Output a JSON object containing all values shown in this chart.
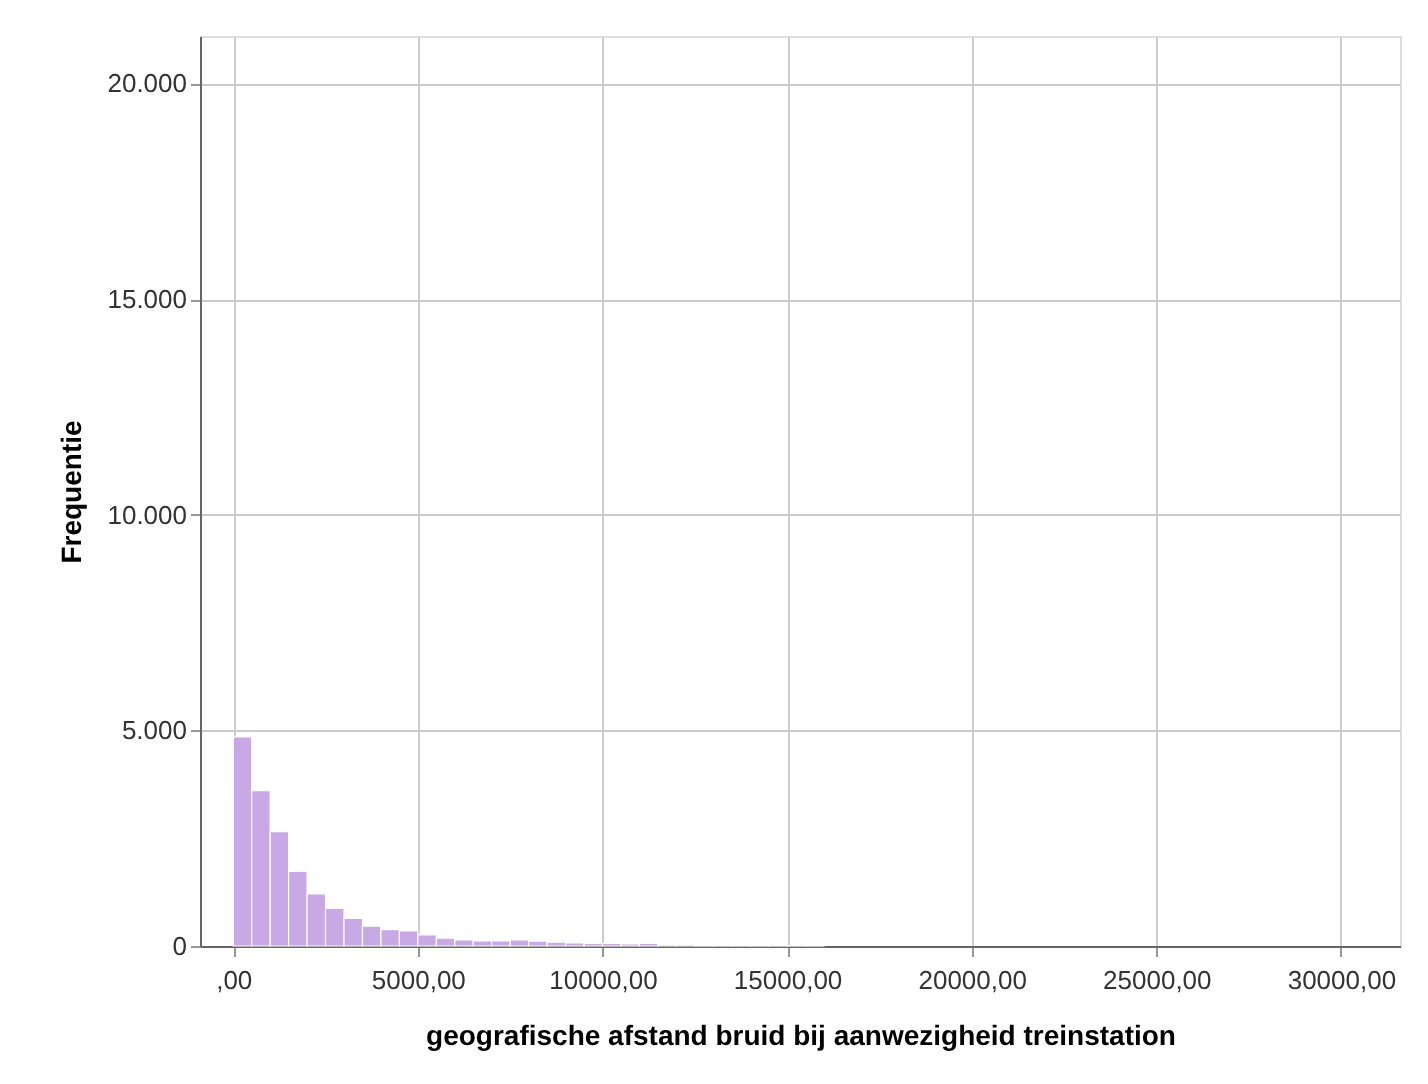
{
  "chart_data": {
    "type": "histogram",
    "xlabel": "geografische afstand bruid bij aanwezigheid treinstation",
    "ylabel": "Frequentie",
    "bins": [
      0,
      500,
      1000,
      1500,
      2000,
      2500,
      3000,
      3500,
      4000,
      4500,
      5000,
      5500,
      6000,
      6500,
      7000,
      7500,
      8000,
      8500,
      9000,
      9500,
      10000,
      10500,
      11000,
      11500,
      12000,
      12500,
      13000,
      13500,
      14000,
      14500,
      15000,
      15500,
      16000
    ],
    "values": [
      4850,
      3600,
      2650,
      1730,
      1210,
      870,
      640,
      460,
      380,
      350,
      260,
      180,
      140,
      120,
      120,
      140,
      110,
      90,
      70,
      60,
      60,
      50,
      60,
      30,
      30,
      20,
      20,
      20,
      20,
      10,
      10,
      10
    ],
    "color": "#c9a8e6",
    "xlim": [
      -900,
      31600
    ],
    "ylim": [
      0,
      21100
    ],
    "xticks": [
      {
        "value": 0,
        "label": ",00"
      },
      {
        "value": 5000,
        "label": "5000,00"
      },
      {
        "value": 10000,
        "label": "10000,00"
      },
      {
        "value": 15000,
        "label": "15000,00"
      },
      {
        "value": 20000,
        "label": "20000,00"
      },
      {
        "value": 25000,
        "label": "25000,00"
      },
      {
        "value": 30000,
        "label": "30000,00"
      }
    ],
    "yticks": [
      0,
      {
        "value": 5000,
        "label": "5.000"
      },
      {
        "value": 10000,
        "label": "10.000"
      },
      {
        "value": 15000,
        "label": "15.000"
      },
      {
        "value": 20000,
        "label": "20.000"
      }
    ],
    "grid": true
  }
}
